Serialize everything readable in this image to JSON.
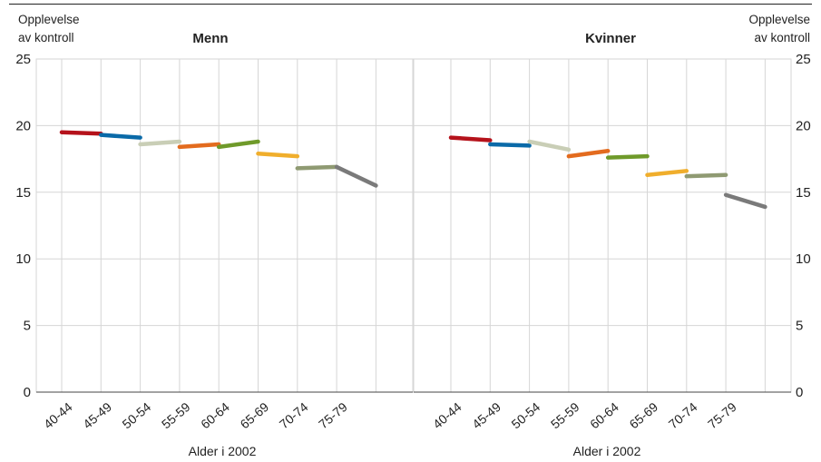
{
  "chart_data": [
    {
      "type": "line",
      "title": "Menn",
      "ylabel": [
        "Opplevelse",
        "av kontroll"
      ],
      "xlabel": "Alder i 2002",
      "ylim": [
        0,
        25
      ],
      "yticks": [
        "0",
        "5",
        "10",
        "15",
        "20",
        "25"
      ],
      "categories": [
        "40-44",
        "45-49",
        "50-54",
        "55-59",
        "60-64",
        "65-69",
        "70-74",
        "75-79"
      ],
      "grid": true,
      "series": [
        {
          "color": "#b5121b",
          "points": [
            [
              0,
              19.5
            ],
            [
              1,
              19.4
            ]
          ]
        },
        {
          "color": "#0a6aa8",
          "points": [
            [
              1,
              19.3
            ],
            [
              2,
              19.1
            ]
          ]
        },
        {
          "color": "#c9ceb6",
          "points": [
            [
              2,
              18.6
            ],
            [
              3,
              18.8
            ]
          ]
        },
        {
          "color": "#e36b1e",
          "points": [
            [
              3,
              18.4
            ],
            [
              4,
              18.6
            ]
          ]
        },
        {
          "color": "#6f9a2a",
          "points": [
            [
              4,
              18.4
            ],
            [
              5,
              18.8
            ]
          ]
        },
        {
          "color": "#f0ae2c",
          "points": [
            [
              5,
              17.9
            ],
            [
              6,
              17.7
            ]
          ]
        },
        {
          "color": "#8f9a72",
          "points": [
            [
              6,
              16.8
            ],
            [
              7,
              16.9
            ]
          ]
        },
        {
          "color": "#7a7a7a",
          "points": [
            [
              7,
              16.9
            ],
            [
              8,
              15.5
            ]
          ]
        }
      ]
    },
    {
      "type": "line",
      "title": "Kvinner",
      "ylabel": [
        "Opplevelse",
        "av kontroll"
      ],
      "xlabel": "Alder i 2002",
      "ylim": [
        0,
        25
      ],
      "yticks": [
        "0",
        "5",
        "10",
        "15",
        "20",
        "25"
      ],
      "categories": [
        "40-44",
        "45-49",
        "50-54",
        "55-59",
        "60-64",
        "65-69",
        "70-74",
        "75-79"
      ],
      "grid": true,
      "series": [
        {
          "color": "#b5121b",
          "points": [
            [
              0,
              19.1
            ],
            [
              1,
              18.9
            ]
          ]
        },
        {
          "color": "#0a6aa8",
          "points": [
            [
              1,
              18.6
            ],
            [
              2,
              18.5
            ]
          ]
        },
        {
          "color": "#c9ceb6",
          "points": [
            [
              2,
              18.8
            ],
            [
              3,
              18.2
            ]
          ]
        },
        {
          "color": "#e36b1e",
          "points": [
            [
              3,
              17.7
            ],
            [
              4,
              18.1
            ]
          ]
        },
        {
          "color": "#6f9a2a",
          "points": [
            [
              4,
              17.6
            ],
            [
              5,
              17.7
            ]
          ]
        },
        {
          "color": "#f0ae2c",
          "points": [
            [
              5,
              16.3
            ],
            [
              6,
              16.6
            ]
          ]
        },
        {
          "color": "#8f9a72",
          "points": [
            [
              6,
              16.2
            ],
            [
              7,
              16.3
            ]
          ]
        },
        {
          "color": "#7a7a7a",
          "points": [
            [
              7,
              14.8
            ],
            [
              8,
              13.9
            ]
          ]
        }
      ]
    }
  ]
}
